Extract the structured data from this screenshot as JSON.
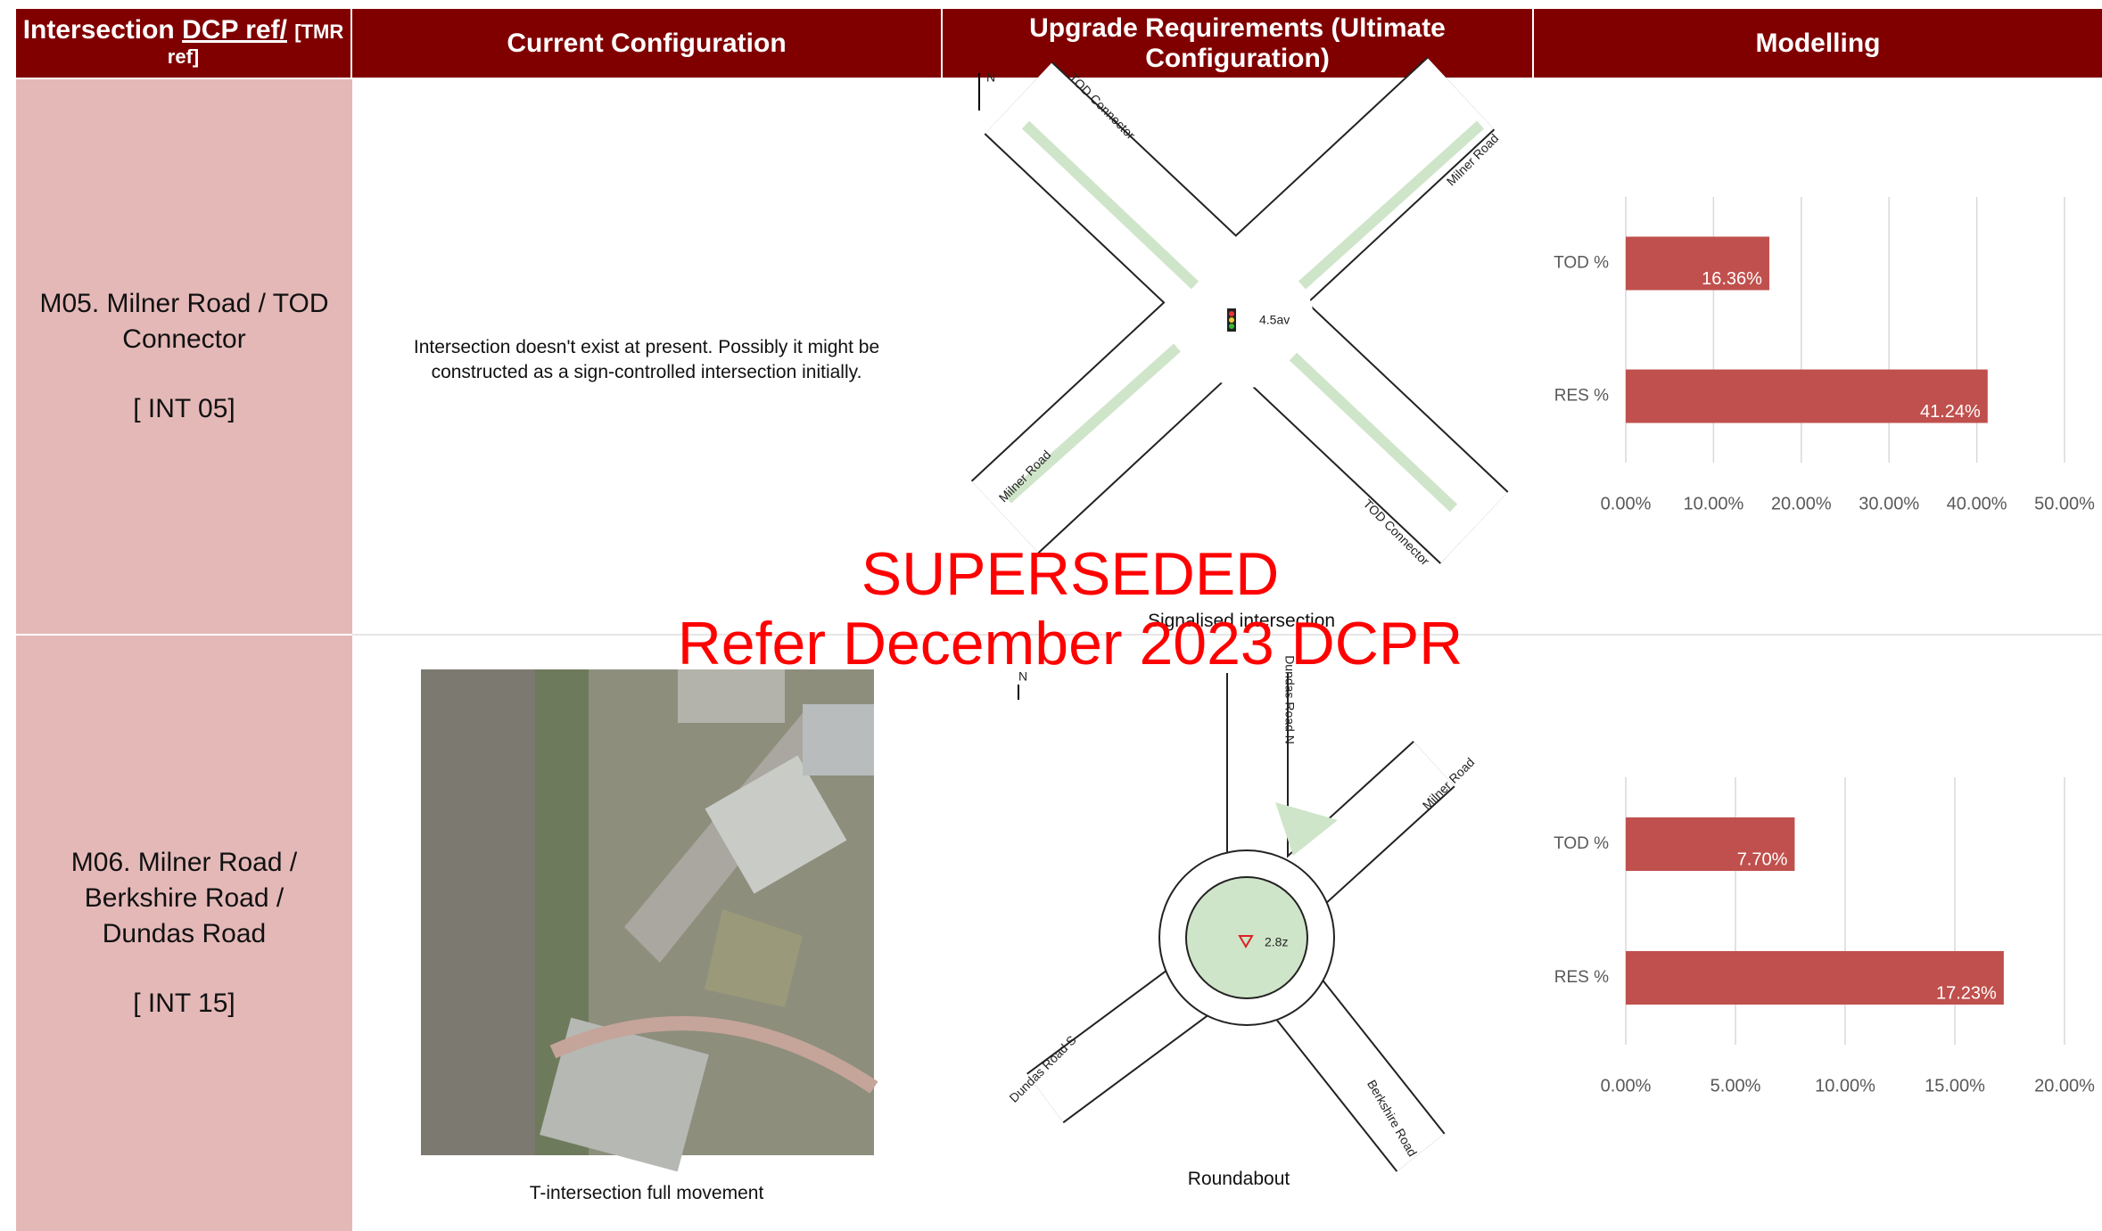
{
  "header": {
    "col1": {
      "lead": "Intersection",
      "dcp": "DCP ref/",
      "tmr": "[TMR ref]"
    },
    "col2": "Current Configuration",
    "col3": "Upgrade Requirements (Ultimate Configuration)",
    "col4": "Modelling"
  },
  "rows": [
    {
      "ref": "M05. Milner Road / TOD Connector",
      "code": "[ INT 05]",
      "current": {
        "text": "Intersection doesn't exist at present. Possibly it might be constructed as a sign-controlled intersection initially."
      },
      "upgrade": {
        "caption": "Signalised intersection",
        "labels": [
          "N",
          "TOD Connector",
          "Milner Road",
          "Milner Road",
          "TOD Connector",
          "4.5av"
        ]
      },
      "chart": {
        "type": "bar",
        "categories": [
          "TOD %",
          "RES %"
        ],
        "values": [
          16.36,
          41.24
        ],
        "value_labels": [
          "16.36%",
          "41.24%"
        ],
        "color": "#c0504d",
        "xlim": [
          0,
          50
        ],
        "xticks": [
          {
            "value": 0,
            "label": "0.00%"
          },
          {
            "value": 10,
            "label": "10.00%"
          },
          {
            "value": 20,
            "label": "20.00%"
          },
          {
            "value": 30,
            "label": "30.00%"
          },
          {
            "value": 40,
            "label": "40.00%"
          },
          {
            "value": 50,
            "label": "50.00%"
          }
        ],
        "grid": true
      }
    },
    {
      "ref": "M06. Milner Road / Berkshire Road / Dundas Road",
      "code": "[ INT 15]",
      "current": {
        "caption": "T-intersection full movement"
      },
      "upgrade": {
        "caption": "Roundabout",
        "labels": [
          "N",
          "Dundas Road N",
          "Milner Road",
          "Dundas Road S",
          "Berkshire Road",
          "2.8z"
        ]
      },
      "chart": {
        "type": "bar",
        "categories": [
          "TOD %",
          "RES %"
        ],
        "values": [
          7.7,
          17.23
        ],
        "value_labels": [
          "7.70%",
          "17.23%"
        ],
        "color": "#c0504d",
        "xlim": [
          0,
          20
        ],
        "xticks": [
          {
            "value": 0,
            "label": "0.00%"
          },
          {
            "value": 5,
            "label": "5.00%"
          },
          {
            "value": 10,
            "label": "10.00%"
          },
          {
            "value": 15,
            "label": "15.00%"
          },
          {
            "value": 20,
            "label": "20.00%"
          }
        ],
        "grid": true
      }
    }
  ],
  "watermark": {
    "line1": "SUPERSEDED",
    "line2": "Refer December 2023 DCPR"
  }
}
